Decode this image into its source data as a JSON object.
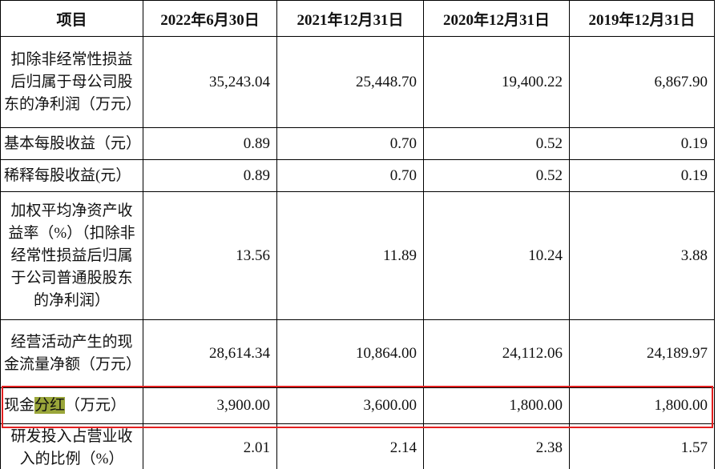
{
  "table": {
    "header": [
      "项目",
      "2022年6月30日",
      "2021年12月31日",
      "2020年12月31日",
      "2019年12月31日"
    ],
    "rows": [
      {
        "label": [
          "扣除非经常性损益后归属于母公司股东的净利润（万元）"
        ],
        "values": [
          "35,243.04",
          "25,448.70",
          "19,400.22",
          "6,867.90"
        ]
      },
      {
        "label": [
          "基本每股收益（元）"
        ],
        "values": [
          "0.89",
          "0.70",
          "0.52",
          "0.19"
        ]
      },
      {
        "label": [
          "稀释每股收益(元）"
        ],
        "values": [
          "0.89",
          "0.70",
          "0.52",
          "0.19"
        ]
      },
      {
        "label": [
          "加权平均净资产收益率（%）（扣除非经常性损益后归属于公司普通股股东的净利润）"
        ],
        "values": [
          "13.56",
          "11.89",
          "10.24",
          "3.88"
        ]
      },
      {
        "label": [
          "经营活动产生的现金流量净额（万元）"
        ],
        "values": [
          "28,614.34",
          "10,864.00",
          "24,112.06",
          "24,189.97"
        ]
      },
      {
        "label": [
          "现金",
          "分红",
          "（万元）"
        ],
        "values": [
          "3,900.00",
          "3,600.00",
          "1,800.00",
          "1,800.00"
        ]
      },
      {
        "label": [
          "研发投入占营业收入的比例（%）"
        ],
        "values": [
          "2.01",
          "2.14",
          "2.38",
          "1.57"
        ]
      }
    ]
  }
}
